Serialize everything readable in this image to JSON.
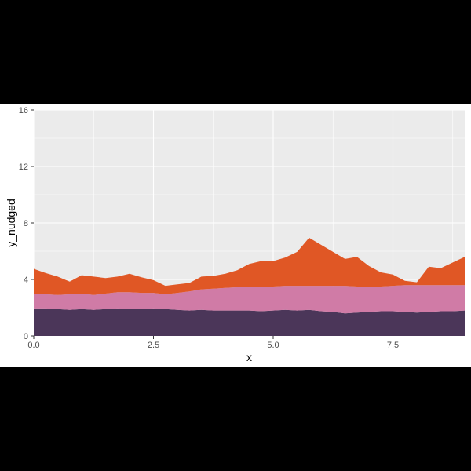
{
  "chart_data": {
    "type": "area",
    "stacked": true,
    "xlabel": "x",
    "ylabel": "y_nudged",
    "xlim": [
      0,
      9
    ],
    "ylim": [
      0,
      16
    ],
    "x_ticks": [
      0.0,
      2.5,
      5.0,
      7.5
    ],
    "x_tick_labels": [
      "0.0",
      "2.5",
      "5.0",
      "7.5"
    ],
    "y_ticks": [
      0,
      4,
      8,
      12,
      16
    ],
    "y_tick_labels": [
      "0",
      "4",
      "8",
      "12",
      "16"
    ],
    "grid": true,
    "legend": "none",
    "panel_background": "#ebebeb",
    "x": [
      0,
      0.25,
      0.5,
      0.75,
      1,
      1.25,
      1.5,
      1.75,
      2,
      2.25,
      2.5,
      2.75,
      3,
      3.25,
      3.5,
      3.75,
      4,
      4.25,
      4.5,
      4.75,
      5,
      5.25,
      5.5,
      5.75,
      6,
      6.25,
      6.5,
      6.75,
      7,
      7.25,
      7.5,
      7.75,
      8,
      8.25,
      8.5,
      8.75,
      9
    ],
    "series": [
      {
        "color": "#4b3659",
        "values": [
          1.95,
          1.95,
          1.9,
          1.85,
          1.9,
          1.85,
          1.9,
          1.95,
          1.9,
          1.9,
          1.95,
          1.9,
          1.85,
          1.8,
          1.85,
          1.8,
          1.8,
          1.8,
          1.8,
          1.75,
          1.8,
          1.85,
          1.8,
          1.85,
          1.75,
          1.7,
          1.6,
          1.65,
          1.7,
          1.75,
          1.75,
          1.7,
          1.65,
          1.7,
          1.75,
          1.75,
          1.8
        ]
      },
      {
        "color": "#d07ba6",
        "values": [
          1.0,
          1.0,
          1.0,
          1.1,
          1.1,
          1.05,
          1.1,
          1.15,
          1.2,
          1.15,
          1.1,
          1.05,
          1.2,
          1.35,
          1.45,
          1.55,
          1.6,
          1.65,
          1.7,
          1.75,
          1.7,
          1.7,
          1.75,
          1.7,
          1.8,
          1.85,
          1.95,
          1.85,
          1.75,
          1.75,
          1.8,
          1.9,
          1.95,
          1.9,
          1.85,
          1.85,
          1.8
        ]
      },
      {
        "color": "#e05725",
        "values": [
          1.8,
          1.5,
          1.3,
          0.9,
          1.3,
          1.3,
          1.1,
          1.1,
          1.3,
          1.1,
          0.9,
          0.6,
          0.6,
          0.6,
          0.9,
          0.9,
          1.0,
          1.2,
          1.6,
          1.8,
          1.8,
          2.0,
          2.4,
          3.4,
          2.9,
          2.4,
          1.9,
          2.1,
          1.5,
          1.0,
          0.8,
          0.3,
          0.2,
          1.3,
          1.2,
          1.6,
          2.0
        ]
      }
    ]
  }
}
